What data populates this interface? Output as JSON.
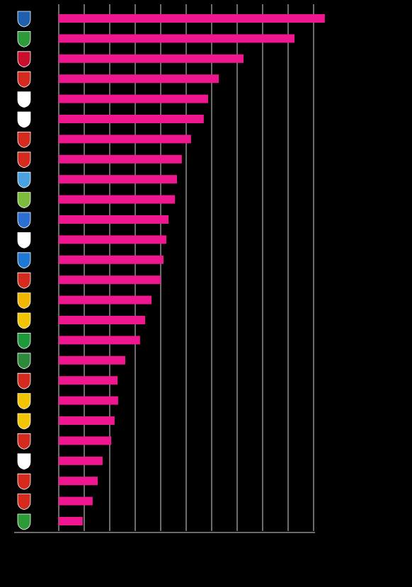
{
  "chart_data": {
    "type": "bar",
    "orientation": "horizontal",
    "color": "#f0168f",
    "values": [
      10.44,
      9.25,
      7.25,
      6.28,
      5.86,
      5.69,
      5.19,
      4.83,
      4.64,
      4.56,
      4.31,
      4.22,
      4.11,
      4.0,
      3.64,
      3.39,
      3.19,
      2.61,
      2.31,
      2.33,
      2.19,
      2.06,
      1.72,
      1.53,
      1.33,
      0.94
    ],
    "xlim": [
      0,
      10.5
    ],
    "xticks": [
      0,
      1,
      2,
      3,
      4,
      5,
      6,
      7,
      8,
      9,
      10
    ],
    "grid": true
  }
}
